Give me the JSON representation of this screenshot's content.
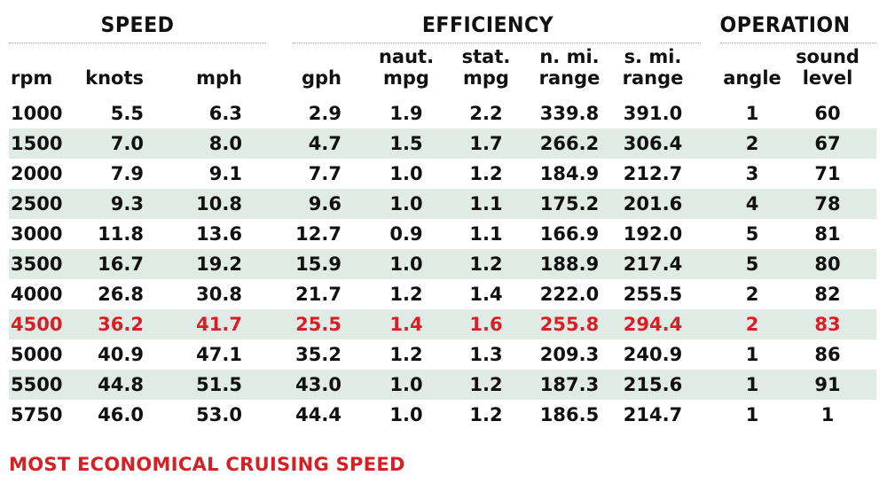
{
  "colors": {
    "band": "#e0ebe6",
    "highlight": "#d71f26",
    "text": "#111111"
  },
  "groups": {
    "speed": "SPEED",
    "efficiency": "EFFICIENCY",
    "operation": "OPERATION"
  },
  "headers": {
    "rpm": [
      "rpm"
    ],
    "knots": [
      "knots"
    ],
    "mph": [
      "mph"
    ],
    "gph": [
      "gph"
    ],
    "naut_mpg": [
      "naut.",
      "mpg"
    ],
    "stat_mpg": [
      "stat.",
      "mpg"
    ],
    "n_range": [
      "n. mi.",
      "range"
    ],
    "s_range": [
      "s. mi.",
      "range"
    ],
    "angle": [
      "angle"
    ],
    "sound": [
      "sound",
      "level"
    ]
  },
  "footnote": "MOST ECONOMICAL CRUISING SPEED",
  "chart_data": {
    "type": "table",
    "columns": [
      "rpm",
      "knots",
      "mph",
      "gph",
      "naut. mpg",
      "stat. mpg",
      "n. mi. range",
      "s. mi. range",
      "angle",
      "sound level"
    ],
    "highlight_row_rpm": "4500",
    "rows": [
      [
        "1000",
        "5.5",
        "6.3",
        "2.9",
        "1.9",
        "2.2",
        "339.8",
        "391.0",
        "1",
        "60"
      ],
      [
        "1500",
        "7.0",
        "8.0",
        "4.7",
        "1.5",
        "1.7",
        "266.2",
        "306.4",
        "2",
        "67"
      ],
      [
        "2000",
        "7.9",
        "9.1",
        "7.7",
        "1.0",
        "1.2",
        "184.9",
        "212.7",
        "3",
        "71"
      ],
      [
        "2500",
        "9.3",
        "10.8",
        "9.6",
        "1.0",
        "1.1",
        "175.2",
        "201.6",
        "4",
        "78"
      ],
      [
        "3000",
        "11.8",
        "13.6",
        "12.7",
        "0.9",
        "1.1",
        "166.9",
        "192.0",
        "5",
        "81"
      ],
      [
        "3500",
        "16.7",
        "19.2",
        "15.9",
        "1.0",
        "1.2",
        "188.9",
        "217.4",
        "5",
        "80"
      ],
      [
        "4000",
        "26.8",
        "30.8",
        "21.7",
        "1.2",
        "1.4",
        "222.0",
        "255.5",
        "2",
        "82"
      ],
      [
        "4500",
        "36.2",
        "41.7",
        "25.5",
        "1.4",
        "1.6",
        "255.8",
        "294.4",
        "2",
        "83"
      ],
      [
        "5000",
        "40.9",
        "47.1",
        "35.2",
        "1.2",
        "1.3",
        "209.3",
        "240.9",
        "1",
        "86"
      ],
      [
        "5500",
        "44.8",
        "51.5",
        "43.0",
        "1.0",
        "1.2",
        "187.3",
        "215.6",
        "1",
        "91"
      ],
      [
        "5750",
        "46.0",
        "53.0",
        "44.4",
        "1.0",
        "1.2",
        "186.5",
        "214.7",
        "1",
        "1"
      ]
    ]
  }
}
